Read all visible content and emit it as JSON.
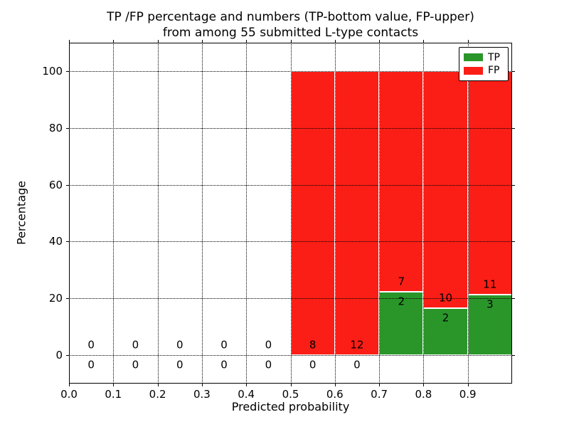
{
  "figure": {
    "title_line1": "TP /FP percentage and numbers (TP-bottom value, FP-upper)",
    "title_line2": "from among 55 submitted L-type contacts"
  },
  "axes": {
    "xlabel": "Predicted probability",
    "ylabel": "Percentage"
  },
  "legend": {
    "position": "upper right",
    "items": [
      {
        "label": "TP",
        "color": "#2a962a"
      },
      {
        "label": "FP",
        "color": "#fa1e16"
      }
    ]
  },
  "chart_data": {
    "type": "bar",
    "stacked": true,
    "title": "TP /FP percentage and numbers (TP-bottom value, FP-upper) from among 55 submitted L-type contacts",
    "xlabel": "Predicted probability",
    "ylabel": "Percentage",
    "xlim": [
      0.0,
      1.0
    ],
    "ylim": [
      -10,
      110
    ],
    "grid": "dotted",
    "legend_position": "upper right",
    "total_contacts": 55,
    "annotation_note": "per bar: FP count printed above TP/FP boundary, TP count printed below it",
    "bin_edges": [
      0.0,
      0.1,
      0.2,
      0.3,
      0.4,
      0.5,
      0.6,
      0.7,
      0.8,
      0.9,
      1.0
    ],
    "xtick_values": [
      0.0,
      0.1,
      0.2,
      0.3,
      0.4,
      0.5,
      0.6,
      0.7,
      0.8,
      0.9
    ],
    "xtick_labels": [
      "0.0",
      "0.1",
      "0.2",
      "0.3",
      "0.4",
      "0.5",
      "0.6",
      "0.7",
      "0.8",
      "0.9"
    ],
    "ytick_values": [
      0,
      20,
      40,
      60,
      80,
      100
    ],
    "series": [
      {
        "name": "TP",
        "color": "#2a962a",
        "counts": [
          0,
          0,
          0,
          0,
          0,
          0,
          0,
          2,
          2,
          3
        ],
        "pct": [
          0,
          0,
          0,
          0,
          0,
          0,
          0,
          22.22,
          16.67,
          21.43
        ]
      },
      {
        "name": "FP",
        "color": "#fa1e16",
        "counts": [
          0,
          0,
          0,
          0,
          0,
          8,
          12,
          7,
          10,
          11
        ],
        "pct": [
          0,
          0,
          0,
          0,
          0,
          100,
          100,
          77.78,
          83.33,
          78.57
        ]
      }
    ]
  }
}
